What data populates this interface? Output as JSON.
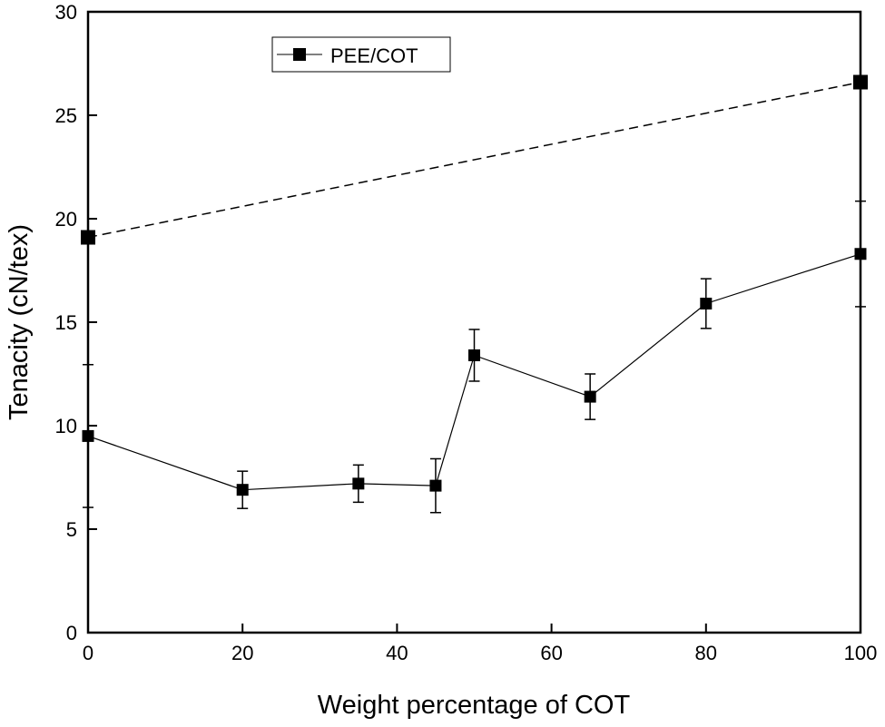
{
  "chart_data": {
    "type": "line",
    "xlabel": "Weight percentage of COT",
    "ylabel": "Tenacity (cN/tex)",
    "xlim": [
      0,
      100
    ],
    "ylim": [
      0,
      30
    ],
    "xticks": [
      0,
      20,
      40,
      60,
      80,
      100
    ],
    "yticks": [
      0,
      5,
      10,
      15,
      20,
      25,
      30
    ],
    "grid": false,
    "legend": {
      "placement": "top-left",
      "entries": [
        "PEE/COT"
      ]
    },
    "series": [
      {
        "name": "PEE/COT",
        "style": "solid",
        "marker": "square",
        "x": [
          0,
          20,
          35,
          45,
          50,
          65,
          80,
          100
        ],
        "y": [
          9.5,
          6.9,
          7.2,
          7.1,
          13.4,
          11.4,
          15.9,
          18.3
        ],
        "error": [
          3.45,
          0.9,
          0.9,
          1.3,
          1.25,
          1.1,
          1.2,
          2.55
        ]
      },
      {
        "style": "dashed",
        "marker": "square",
        "x": [
          0,
          100
        ],
        "y": [
          19.1,
          26.6
        ]
      }
    ],
    "colors": {
      "line": "#000000"
    }
  }
}
